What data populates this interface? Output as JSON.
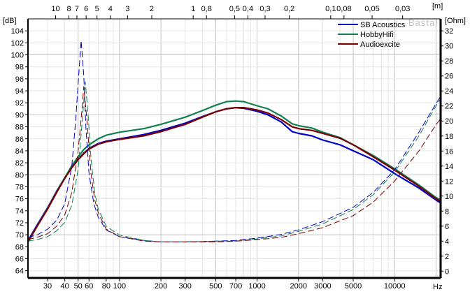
{
  "chart_data": {
    "type": "line",
    "title": "",
    "xlabel": "Hz",
    "ylabel_left": "[dB]",
    "ylabel_right": "[Ohm]",
    "top_axis_label": "[m]",
    "watermark": "Basta!",
    "xscale": "log",
    "xlim": [
      21.6,
      21600
    ],
    "ylim_left": [
      62.8,
      106
    ],
    "ylim_right": [
      -0.9,
      33.6
    ],
    "x_ticks": [
      30,
      40,
      50,
      60,
      80,
      100,
      200,
      300,
      500,
      700,
      1000,
      2000,
      3000,
      5000,
      10000
    ],
    "x_tick_labels": [
      "30",
      "40",
      "50",
      "60",
      "80",
      "100",
      "200",
      "300",
      "500",
      "700",
      "1000",
      "2000",
      "3000",
      "5000",
      "10000"
    ],
    "top_ticks_m": [
      10,
      8,
      7,
      6,
      5,
      4,
      3,
      2,
      1,
      0.8,
      0.5,
      0.4,
      0.3,
      0.2,
      0.1,
      0.08,
      0.05,
      0.03
    ],
    "top_tick_labels": [
      "10",
      "8",
      "7",
      "6",
      "5",
      "4",
      "3",
      "2",
      "1",
      "0,8",
      "0,5",
      "0,4",
      "0,3",
      "0,2",
      "0,1",
      "0,08",
      "0,05",
      "0,03"
    ],
    "left_ticks": [
      "64",
      "66",
      "68",
      "70",
      "72",
      "74",
      "76",
      "78",
      "80",
      "82",
      "84",
      "86",
      "88",
      "90",
      "92",
      "94",
      "96",
      "98",
      "100",
      "102",
      "104"
    ],
    "right_ticks": [
      "0",
      "2",
      "4",
      "6",
      "8",
      "10",
      "12",
      "14",
      "16",
      "18",
      "20",
      "22",
      "24",
      "26",
      "28",
      "30",
      "32"
    ],
    "grid": true,
    "legend_position": "top-right",
    "series": [
      {
        "name": "SB Acoustics",
        "color": "#0000c8",
        "kind": "spl",
        "points": [
          [
            21.6,
            69
          ],
          [
            25,
            71.5
          ],
          [
            30,
            74.5
          ],
          [
            35,
            77.3
          ],
          [
            40,
            79.5
          ],
          [
            45,
            81.3
          ],
          [
            50,
            82.6
          ],
          [
            55,
            83.6
          ],
          [
            60,
            84.4
          ],
          [
            70,
            85.2
          ],
          [
            80,
            85.6
          ],
          [
            100,
            86
          ],
          [
            150,
            86.7
          ],
          [
            200,
            87.4
          ],
          [
            300,
            88.6
          ],
          [
            400,
            89.7
          ],
          [
            500,
            90.5
          ],
          [
            600,
            91
          ],
          [
            700,
            91.2
          ],
          [
            800,
            91.1
          ],
          [
            1000,
            90.6
          ],
          [
            1200,
            90
          ],
          [
            1500,
            88.8
          ],
          [
            1800,
            87.2
          ],
          [
            2000,
            86.9
          ],
          [
            2500,
            86.5
          ],
          [
            3000,
            85.8
          ],
          [
            4000,
            85
          ],
          [
            5000,
            84
          ],
          [
            7000,
            82.5
          ],
          [
            10000,
            80.2
          ],
          [
            15000,
            77.8
          ],
          [
            20000,
            75.8
          ],
          [
            21600,
            75.3
          ]
        ]
      },
      {
        "name": "HobbyHifi",
        "color": "#108050",
        "kind": "spl",
        "points": [
          [
            21.6,
            68.8
          ],
          [
            25,
            71.3
          ],
          [
            30,
            74.4
          ],
          [
            35,
            77.2
          ],
          [
            40,
            79.5
          ],
          [
            45,
            81.5
          ],
          [
            50,
            83
          ],
          [
            55,
            84.2
          ],
          [
            60,
            85
          ],
          [
            70,
            86
          ],
          [
            80,
            86.6
          ],
          [
            100,
            87.1
          ],
          [
            150,
            87.7
          ],
          [
            200,
            88.4
          ],
          [
            300,
            89.6
          ],
          [
            400,
            90.7
          ],
          [
            500,
            91.6
          ],
          [
            600,
            92.2
          ],
          [
            700,
            92.3
          ],
          [
            800,
            92.2
          ],
          [
            1000,
            91.5
          ],
          [
            1200,
            91
          ],
          [
            1500,
            89.8
          ],
          [
            1800,
            88.5
          ],
          [
            2000,
            88.2
          ],
          [
            2500,
            87.8
          ],
          [
            3000,
            87.1
          ],
          [
            4000,
            86.2
          ],
          [
            5000,
            85
          ],
          [
            7000,
            83.2
          ],
          [
            10000,
            81
          ],
          [
            15000,
            78.3
          ],
          [
            20000,
            76.2
          ],
          [
            21600,
            75.8
          ]
        ]
      },
      {
        "name": "Audioexcite",
        "color": "#780000",
        "kind": "spl",
        "points": [
          [
            21.6,
            68.8
          ],
          [
            25,
            71.3
          ],
          [
            30,
            74.3
          ],
          [
            35,
            77.1
          ],
          [
            40,
            79.4
          ],
          [
            45,
            81.2
          ],
          [
            50,
            82.5
          ],
          [
            55,
            83.5
          ],
          [
            60,
            84.3
          ],
          [
            70,
            85.1
          ],
          [
            80,
            85.5
          ],
          [
            100,
            85.9
          ],
          [
            150,
            86.5
          ],
          [
            200,
            87.2
          ],
          [
            300,
            88.4
          ],
          [
            400,
            89.6
          ],
          [
            500,
            90.5
          ],
          [
            600,
            91
          ],
          [
            700,
            91.2
          ],
          [
            800,
            91.2
          ],
          [
            1000,
            90.8
          ],
          [
            1200,
            90.3
          ],
          [
            1500,
            89.2
          ],
          [
            1800,
            88
          ],
          [
            2000,
            87.7
          ],
          [
            2500,
            87.4
          ],
          [
            3000,
            86.9
          ],
          [
            4000,
            86.1
          ],
          [
            5000,
            85
          ],
          [
            7000,
            83
          ],
          [
            10000,
            80.8
          ],
          [
            15000,
            78.1
          ],
          [
            20000,
            76
          ],
          [
            21600,
            75.6
          ]
        ]
      },
      {
        "name": "SB Acoustics impedance",
        "color": "#0000c8",
        "kind": "impedance",
        "points": [
          [
            21.6,
            4.5
          ],
          [
            25,
            4.8
          ],
          [
            30,
            5.6
          ],
          [
            35,
            6.8
          ],
          [
            40,
            9
          ],
          [
            45,
            14
          ],
          [
            48,
            20
          ],
          [
            50,
            25
          ],
          [
            52.6,
            30.7
          ],
          [
            55,
            26
          ],
          [
            57,
            19
          ],
          [
            60,
            13
          ],
          [
            65,
            9
          ],
          [
            70,
            7.2
          ],
          [
            80,
            5.5
          ],
          [
            100,
            4.6
          ],
          [
            150,
            4.1
          ],
          [
            200,
            3.9
          ],
          [
            300,
            3.9
          ],
          [
            500,
            4
          ],
          [
            700,
            4.1
          ],
          [
            1000,
            4.4
          ],
          [
            1500,
            4.9
          ],
          [
            2000,
            5.5
          ],
          [
            3000,
            6.6
          ],
          [
            5000,
            8.5
          ],
          [
            7000,
            10.5
          ],
          [
            10000,
            13.5
          ],
          [
            15000,
            18.5
          ],
          [
            20000,
            22.3
          ],
          [
            21600,
            23.3
          ]
        ]
      },
      {
        "name": "HobbyHifi impedance",
        "color": "#108050",
        "kind": "impedance",
        "points": [
          [
            21.6,
            4
          ],
          [
            25,
            4.2
          ],
          [
            30,
            4.6
          ],
          [
            35,
            5.4
          ],
          [
            40,
            6.5
          ],
          [
            45,
            8.8
          ],
          [
            50,
            13.5
          ],
          [
            53,
            19
          ],
          [
            56.4,
            25.2
          ],
          [
            59,
            21
          ],
          [
            62,
            15
          ],
          [
            66,
            10.5
          ],
          [
            70,
            8.3
          ],
          [
            80,
            6
          ],
          [
            100,
            4.8
          ],
          [
            150,
            4.1
          ],
          [
            200,
            3.9
          ],
          [
            300,
            3.9
          ],
          [
            500,
            4
          ],
          [
            700,
            4
          ],
          [
            1000,
            4.3
          ],
          [
            1500,
            4.7
          ],
          [
            2000,
            5.3
          ],
          [
            3000,
            6.3
          ],
          [
            5000,
            8.2
          ],
          [
            7000,
            10.2
          ],
          [
            10000,
            13.2
          ],
          [
            15000,
            18
          ],
          [
            20000,
            22
          ],
          [
            21600,
            23
          ]
        ]
      },
      {
        "name": "Audioexcite impedance",
        "color": "#780000",
        "kind": "impedance",
        "points": [
          [
            21.6,
            4.2
          ],
          [
            25,
            4.5
          ],
          [
            30,
            5
          ],
          [
            35,
            6
          ],
          [
            40,
            7.5
          ],
          [
            45,
            10.5
          ],
          [
            50,
            16
          ],
          [
            53,
            21
          ],
          [
            55,
            24.6
          ],
          [
            58,
            20
          ],
          [
            62,
            13
          ],
          [
            66,
            9.5
          ],
          [
            70,
            7.8
          ],
          [
            80,
            5.6
          ],
          [
            100,
            4.6
          ],
          [
            150,
            4
          ],
          [
            200,
            3.9
          ],
          [
            300,
            3.9
          ],
          [
            500,
            3.9
          ],
          [
            700,
            4
          ],
          [
            1000,
            4.2
          ],
          [
            1500,
            4.5
          ],
          [
            2000,
            5
          ],
          [
            3000,
            5.8
          ],
          [
            5000,
            7.4
          ],
          [
            7000,
            9.2
          ],
          [
            10000,
            12
          ],
          [
            15000,
            16
          ],
          [
            20000,
            19.5
          ],
          [
            21600,
            20.3
          ]
        ]
      }
    ]
  }
}
